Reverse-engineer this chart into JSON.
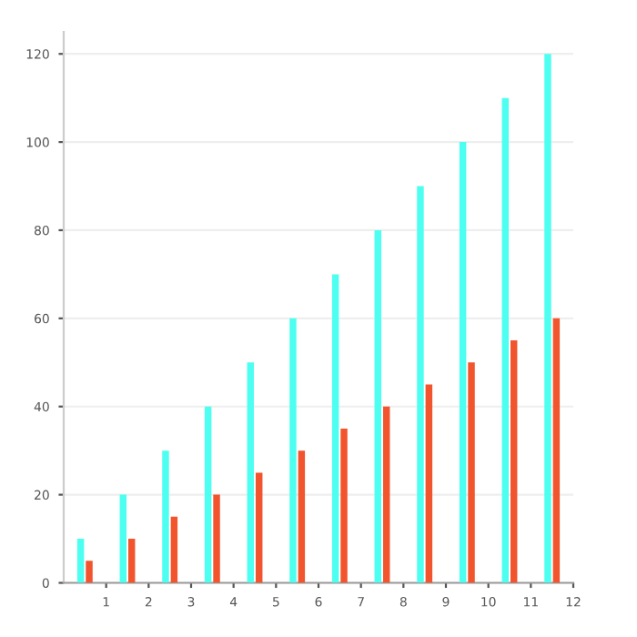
{
  "chart_data": {
    "type": "bar",
    "x": [
      0.5,
      1.5,
      2.5,
      3.5,
      4.5,
      5.5,
      6.5,
      7.5,
      8.5,
      9.5,
      10.5,
      11.5
    ],
    "series": [
      {
        "color": "#4dfff0",
        "values": [
          10,
          20,
          30,
          40,
          50,
          60,
          70,
          80,
          90,
          100,
          110,
          120
        ]
      },
      {
        "color": "#f2542d",
        "values": [
          5,
          10,
          15,
          20,
          25,
          30,
          35,
          40,
          45,
          50,
          55,
          60
        ]
      }
    ],
    "xlim": [
      0,
      12
    ],
    "xticks": [
      1,
      2,
      3,
      4,
      5,
      6,
      7,
      8,
      9,
      10,
      11,
      12
    ],
    "ylim": [
      0,
      125
    ],
    "yticks": [
      0,
      20,
      40,
      60,
      80,
      100,
      120
    ],
    "grid": "y"
  }
}
